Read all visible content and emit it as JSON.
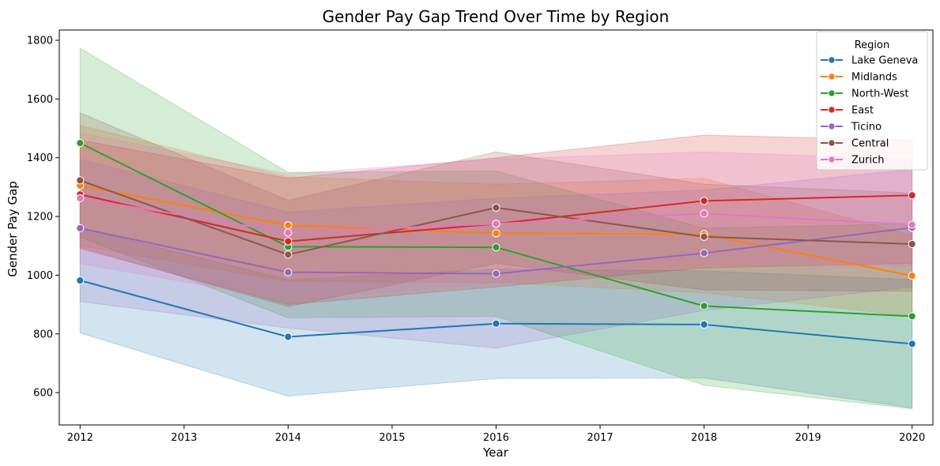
{
  "chart_data": {
    "type": "line",
    "title": "Gender Pay Gap Trend Over Time by Region",
    "xlabel": "Year",
    "ylabel": "Gender Pay Gap",
    "xlim": [
      2011.8,
      2020.2
    ],
    "ylim": [
      490,
      1835
    ],
    "x_ticks": [
      2012,
      2013,
      2014,
      2015,
      2016,
      2017,
      2018,
      2019,
      2020
    ],
    "y_ticks": [
      600,
      800,
      1000,
      1200,
      1400,
      1600,
      1800
    ],
    "grid": false,
    "legend": {
      "title": "Region",
      "placement": "top-right"
    },
    "x": [
      2012,
      2014,
      2016,
      2018,
      2020
    ],
    "series": [
      {
        "name": "Lake Geneva",
        "color": "#1f77b4",
        "values": [
          982,
          790,
          835,
          832,
          766
        ],
        "ci_low": [
          803,
          588,
          648,
          650,
          548
        ],
        "ci_high": [
          1160,
          985,
          1020,
          1015,
          985
        ]
      },
      {
        "name": "Midlands",
        "color": "#ff7f0e",
        "values": [
          1305,
          1170,
          1143,
          1140,
          998
        ],
        "ci_low": [
          1100,
          980,
          975,
          940,
          860
        ],
        "ci_high": [
          1510,
          1335,
          1310,
          1330,
          1135
        ]
      },
      {
        "name": "North-West",
        "color": "#2ca02c",
        "values": [
          1450,
          1097,
          1095,
          895,
          860
        ],
        "ci_low": [
          1130,
          855,
          860,
          625,
          545
        ],
        "ci_high": [
          1773,
          1350,
          1355,
          1160,
          1175
        ]
      },
      {
        "name": "East",
        "color": "#d62728",
        "values": [
          1275,
          1115,
          1175,
          1253,
          1272
        ],
        "ci_low": [
          1090,
          900,
          960,
          1025,
          1040
        ],
        "ci_high": [
          1460,
          1330,
          1400,
          1477,
          1460
        ]
      },
      {
        "name": "Ticino",
        "color": "#9467bd",
        "values": [
          1160,
          1010,
          1005,
          1075,
          1162
        ],
        "ci_low": [
          910,
          820,
          752,
          880,
          960
        ],
        "ci_high": [
          1395,
          1215,
          1262,
          1290,
          1360
        ]
      },
      {
        "name": "Central",
        "color": "#8c564b",
        "values": [
          1323,
          1070,
          1230,
          1131,
          1106
        ],
        "ci_low": [
          1095,
          893,
          1040,
          950,
          945
        ],
        "ci_high": [
          1553,
          1255,
          1420,
          1310,
          1280
        ]
      },
      {
        "name": "Zurich",
        "color": "#e377c2",
        "values": [
          1262,
          1145,
          1175,
          1210,
          1172
        ],
        "ci_low": [
          1040,
          915,
          975,
          1040,
          1030
        ],
        "ci_high": [
          1485,
          1345,
          1395,
          1420,
          1395
        ]
      }
    ]
  }
}
